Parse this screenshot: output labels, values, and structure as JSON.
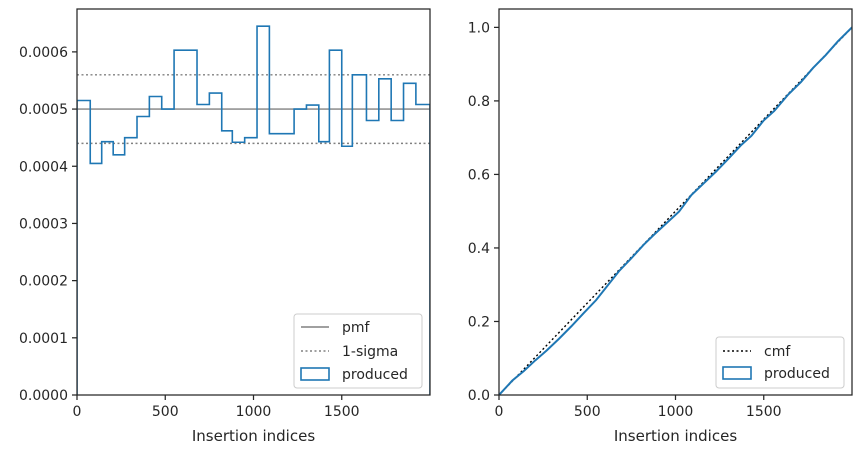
{
  "chart_data": [
    {
      "type": "histogram",
      "xlabel": "Insertion indices",
      "ylabel": "",
      "xlim": [
        0,
        2000
      ],
      "ylim": [
        0,
        0.000675
      ],
      "xticks": [
        0,
        500,
        1000,
        1500
      ],
      "xtick_labels": [
        "0",
        "500",
        "1000",
        "1500"
      ],
      "yticks": [
        0,
        0.0001,
        0.0002,
        0.0003,
        0.0004,
        0.0005,
        0.0006
      ],
      "ytick_labels": [
        "0.0000",
        "0.0001",
        "0.0002",
        "0.0003",
        "0.0004",
        "0.0005",
        "0.0006"
      ],
      "grid": false,
      "legend_position": "bottom-right",
      "legend": [
        "pmf",
        "1-sigma",
        "produced"
      ],
      "reference_lines": [
        {
          "name": "pmf",
          "y": 0.0005,
          "style": "solid",
          "color": "#808080"
        },
        {
          "name": "1-sigma",
          "y": 0.00056,
          "style": "dotted",
          "color": "#808080"
        },
        {
          "name": "1-sigma",
          "y": 0.00044,
          "style": "dotted",
          "color": "#808080"
        }
      ],
      "series": [
        {
          "name": "produced",
          "color": "#1f77b4",
          "bin_edges": [
            0,
            75,
            140,
            205,
            270,
            340,
            410,
            480,
            550,
            680,
            750,
            820,
            880,
            950,
            1020,
            1090,
            1230,
            1300,
            1370,
            1430,
            1500,
            1560,
            1640,
            1710,
            1780,
            1850,
            1920,
            2000
          ],
          "values": [
            0.000515,
            0.000405,
            0.000443,
            0.00042,
            0.00045,
            0.000487,
            0.000522,
            0.0005,
            0.000603,
            0.000508,
            0.000528,
            0.000462,
            0.000442,
            0.00045,
            0.000645,
            0.000457,
            0.0005,
            0.000507,
            0.000443,
            0.000603,
            0.000435,
            0.00056,
            0.00048,
            0.000553,
            0.00048,
            0.000545,
            0.000508
          ]
        }
      ]
    },
    {
      "type": "line",
      "xlabel": "Insertion indices",
      "ylabel": "",
      "xlim": [
        0,
        2000
      ],
      "ylim": [
        0,
        1.05
      ],
      "xticks": [
        0,
        500,
        1000,
        1500
      ],
      "xtick_labels": [
        "0",
        "500",
        "1000",
        "1500"
      ],
      "yticks": [
        0,
        0.2,
        0.4,
        0.6,
        0.8,
        1.0
      ],
      "ytick_labels": [
        "0.0",
        "0.2",
        "0.4",
        "0.6",
        "0.8",
        "1.0"
      ],
      "grid": false,
      "legend_position": "bottom-right",
      "legend": [
        "cmf",
        "produced"
      ],
      "series": [
        {
          "name": "cmf",
          "style": "dotted",
          "color": "#000000",
          "x": [
            0,
            2000
          ],
          "y": [
            0,
            1.0
          ]
        },
        {
          "name": "produced",
          "color": "#1f77b4",
          "x": [
            0,
            75,
            140,
            205,
            270,
            340,
            410,
            480,
            550,
            680,
            750,
            820,
            880,
            950,
            1020,
            1090,
            1230,
            1300,
            1370,
            1430,
            1500,
            1560,
            1640,
            1710,
            1780,
            1850,
            1920,
            2000
          ],
          "y": [
            0,
            0.039,
            0.065,
            0.094,
            0.121,
            0.153,
            0.187,
            0.223,
            0.258,
            0.337,
            0.372,
            0.409,
            0.437,
            0.468,
            0.499,
            0.544,
            0.608,
            0.643,
            0.679,
            0.705,
            0.747,
            0.773,
            0.818,
            0.851,
            0.89,
            0.924,
            0.962,
            1.0
          ]
        }
      ]
    }
  ]
}
